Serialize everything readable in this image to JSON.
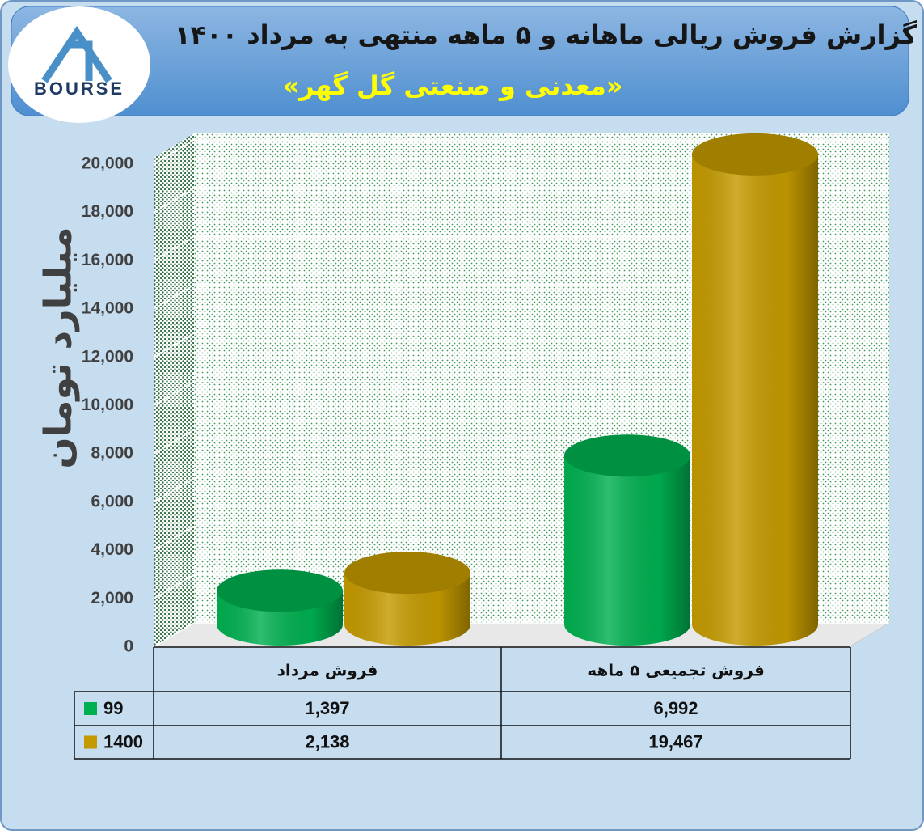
{
  "logo": {
    "text": "BOURSE"
  },
  "chart_data": {
    "type": "bar3d",
    "title": "گزارش فروش ریالی ماهانه و ۵ ماهه منتهی به مرداد ۱۴۰۰",
    "subtitle": "«معدنی و صنعتی گل گهر»",
    "y_label": "میلیارد تومان",
    "categories": [
      "فروش مرداد",
      "فروش تجمیعی ۵  ماهه"
    ],
    "series": [
      {
        "name": "99",
        "color": "#00b050",
        "values": [
          1397,
          6992
        ],
        "value_labels": [
          "1,397",
          "6,992"
        ]
      },
      {
        "name": "1400",
        "color": "#c49a00",
        "values": [
          2138,
          19467
        ],
        "value_labels": [
          "2,138",
          "19,467"
        ]
      }
    ],
    "ylim": [
      0,
      20000
    ],
    "yticks": [
      0,
      {
        "value": 2000,
        "label": "2,000"
      },
      {
        "value": 4000,
        "label": "4,000"
      },
      {
        "value": 6000,
        "label": "6,000"
      },
      {
        "value": 8000,
        "label": "8,000"
      },
      {
        "value": 10000,
        "label": "10,000"
      },
      {
        "value": 12000,
        "label": "12,000"
      },
      {
        "value": 14000,
        "label": "14,000"
      },
      {
        "value": 16000,
        "label": "16,000"
      },
      {
        "value": 18000,
        "label": "18,000"
      },
      {
        "value": 20000,
        "label": "20,000"
      }
    ],
    "grid": true,
    "data_table": true
  }
}
